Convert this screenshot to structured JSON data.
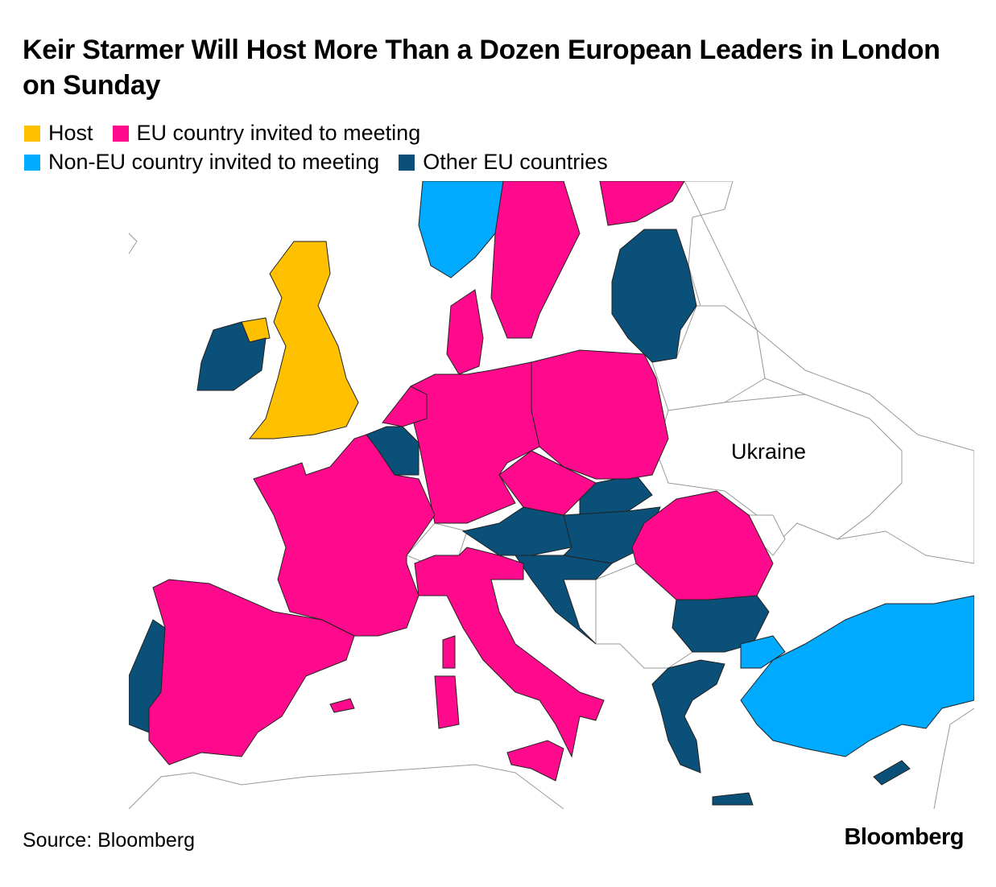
{
  "title": "Keir Starmer Will Host More Than a Dozen European Leaders in London on Sunday",
  "legend": [
    {
      "label": "Host",
      "color": "#FFC000"
    },
    {
      "label": "EU country invited to meeting",
      "color": "#FF0A8C"
    },
    {
      "label": "Non-EU country invited to meeting",
      "color": "#00AAFF"
    },
    {
      "label": "Other EU countries",
      "color": "#0A5078"
    }
  ],
  "map_labels": {
    "ukraine": "Ukraine"
  },
  "categories": {
    "host": [
      "United Kingdom"
    ],
    "eu_invited": [
      "Sweden",
      "Finland",
      "Denmark",
      "Germany",
      "Netherlands",
      "Poland",
      "Czechia",
      "France",
      "Spain",
      "Italy",
      "Romania"
    ],
    "non_eu_invited": [
      "Norway",
      "Turkey"
    ],
    "other_eu": [
      "Ireland",
      "Estonia",
      "Latvia",
      "Lithuania",
      "Belgium",
      "Luxembourg",
      "Austria",
      "Slovakia",
      "Hungary",
      "Slovenia",
      "Croatia",
      "Bulgaria",
      "Greece",
      "Cyprus",
      "Portugal"
    ]
  },
  "source": "Source: Bloomberg",
  "logo": "Bloomberg"
}
